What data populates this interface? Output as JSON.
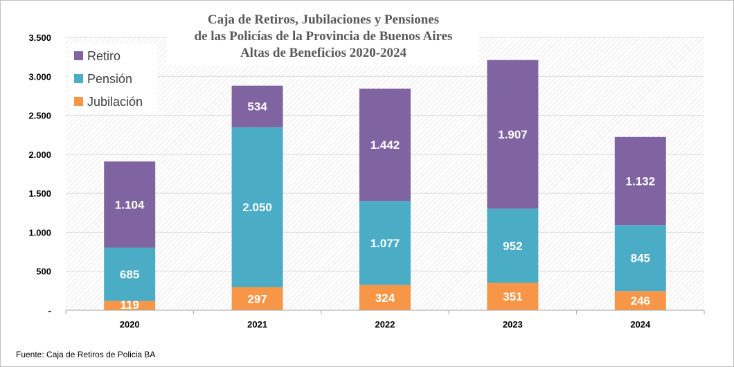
{
  "chart_data": {
    "type": "bar",
    "stacked": true,
    "title_lines": [
      "Caja de Retiros, Jubilaciones y Pensiones",
      "de las Policías de la Provincia de Buenos Aires",
      "Altas de Beneficios 2020-2024"
    ],
    "categories": [
      "2020",
      "2021",
      "2022",
      "2023",
      "2024"
    ],
    "series": [
      {
        "name": "Jubilación",
        "color": "#f79646",
        "values": [
          119,
          297,
          324,
          351,
          246
        ],
        "labels": [
          "119",
          "297",
          "324",
          "351",
          "246"
        ]
      },
      {
        "name": "Pensión",
        "color": "#4bacc6",
        "values": [
          685,
          2050,
          1077,
          952,
          845
        ],
        "labels": [
          "685",
          "2.050",
          "1.077",
          "952",
          "845"
        ]
      },
      {
        "name": "Retiro",
        "color": "#8064a2",
        "values": [
          1104,
          534,
          1442,
          1907,
          1132
        ],
        "labels": [
          "1.104",
          "534",
          "1.442",
          "1.907",
          "1.132"
        ]
      }
    ],
    "ylim": [
      0,
      3500
    ],
    "yticks": [
      0,
      500,
      1000,
      1500,
      2000,
      2500,
      3000,
      3500
    ],
    "ytick_labels": [
      "-",
      "500",
      "1.000",
      "1.500",
      "2.000",
      "2.500",
      "3.000",
      "3.500"
    ],
    "legend": {
      "position": "top-left",
      "order": [
        "Retiro",
        "Pensión",
        "Jubilación"
      ]
    },
    "grid": true
  },
  "source_note": "Fuente: Caja de Retiros de Policia BA"
}
